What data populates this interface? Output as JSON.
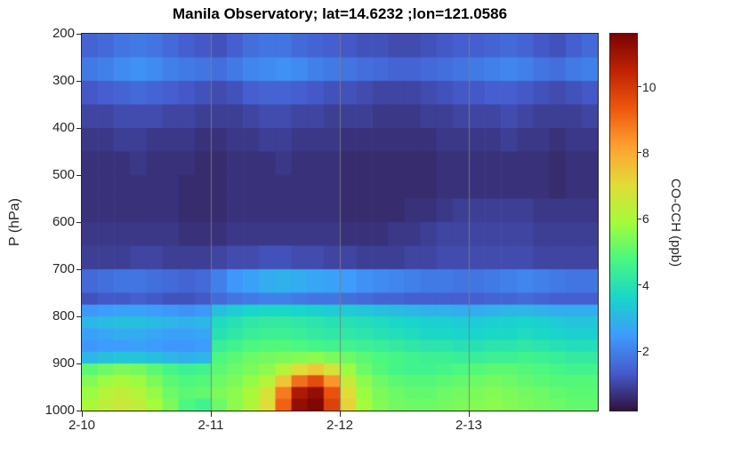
{
  "chart_data": {
    "type": "heatmap",
    "title": "Manila Observatory; lat=14.6232 ;lon=121.0586",
    "xlabel": "",
    "ylabel": "P (hPa)",
    "colorbar_label": "CO-CCH (ppb)",
    "x_tick_labels": [
      "2-10",
      "2-11",
      "2-12",
      "2-13"
    ],
    "x_tick_days": [
      0,
      1,
      2,
      3
    ],
    "x_range_days": [
      0,
      4
    ],
    "time_step_hours": 3,
    "y_ticks_hPa": [
      200,
      300,
      400,
      500,
      600,
      700,
      800,
      900,
      1000
    ],
    "y_range_hPa": [
      200,
      1000
    ],
    "y_axis_direction": "increasing-downward",
    "gridlines_days": [
      1,
      2,
      3
    ],
    "grid": "vertical-only",
    "legend_position": "right-colorbar",
    "color_scale": {
      "colormap": "turbo",
      "vmin": 0.2,
      "vmax": 11.6,
      "ticks_ppb": [
        2,
        4,
        6,
        8,
        10
      ]
    },
    "pressure_edges_hPa": [
      200,
      250,
      300,
      350,
      400,
      450,
      500,
      550,
      600,
      650,
      700,
      750,
      775,
      800,
      825,
      850,
      875,
      900,
      925,
      950,
      975,
      1000
    ],
    "values_ppb": [
      [
        1.5,
        1.6,
        1.8,
        1.9,
        1.8,
        1.6,
        1.4,
        1.3,
        1.2,
        1.4,
        1.7,
        1.8,
        1.8,
        1.6,
        1.5,
        1.4,
        1.3,
        1.2,
        1.2,
        1.1,
        1.1,
        1.2,
        1.3,
        1.4,
        1.4,
        1.5,
        1.6,
        1.5,
        1.3,
        1.2,
        1.4,
        1.6
      ],
      [
        1.9,
        2.0,
        2.2,
        2.3,
        2.2,
        2.0,
        1.9,
        1.8,
        1.7,
        1.9,
        2.1,
        2.2,
        2.3,
        2.2,
        2.0,
        1.9,
        1.8,
        1.7,
        1.6,
        1.5,
        1.5,
        1.6,
        1.7,
        1.8,
        1.9,
        2.0,
        2.1,
        2.0,
        1.8,
        1.7,
        1.9,
        2.0
      ],
      [
        1.3,
        1.4,
        1.5,
        1.6,
        1.5,
        1.4,
        1.3,
        1.2,
        1.1,
        1.2,
        1.4,
        1.5,
        1.5,
        1.4,
        1.3,
        1.2,
        1.2,
        1.1,
        1.0,
        1.0,
        1.0,
        1.1,
        1.2,
        1.3,
        1.3,
        1.4,
        1.4,
        1.3,
        1.2,
        1.1,
        1.2,
        1.3
      ],
      [
        1.0,
        1.0,
        1.1,
        1.1,
        1.1,
        1.0,
        1.0,
        0.9,
        0.9,
        0.9,
        1.0,
        1.1,
        1.1,
        1.0,
        1.0,
        0.9,
        0.9,
        0.9,
        0.8,
        0.8,
        0.8,
        0.9,
        0.9,
        1.0,
        1.0,
        1.0,
        1.1,
        1.0,
        0.9,
        0.9,
        0.9,
        1.0
      ],
      [
        0.8,
        0.8,
        0.9,
        0.9,
        0.8,
        0.8,
        0.8,
        0.7,
        0.7,
        0.8,
        0.8,
        0.9,
        0.9,
        0.8,
        0.8,
        0.8,
        0.7,
        0.7,
        0.7,
        0.7,
        0.7,
        0.7,
        0.8,
        0.8,
        0.8,
        0.8,
        0.9,
        0.8,
        0.8,
        0.7,
        0.8,
        0.8
      ],
      [
        0.7,
        0.7,
        0.7,
        0.8,
        0.7,
        0.7,
        0.7,
        0.6,
        0.6,
        0.7,
        0.7,
        0.7,
        0.8,
        0.7,
        0.7,
        0.7,
        0.6,
        0.6,
        0.6,
        0.6,
        0.6,
        0.6,
        0.7,
        0.7,
        0.7,
        0.7,
        0.7,
        0.7,
        0.7,
        0.6,
        0.7,
        0.7
      ],
      [
        0.7,
        0.7,
        0.7,
        0.7,
        0.7,
        0.7,
        0.6,
        0.6,
        0.6,
        0.7,
        0.7,
        0.7,
        0.7,
        0.7,
        0.7,
        0.7,
        0.6,
        0.6,
        0.6,
        0.6,
        0.6,
        0.6,
        0.7,
        0.7,
        0.7,
        0.7,
        0.7,
        0.7,
        0.7,
        0.6,
        0.7,
        0.7
      ],
      [
        0.7,
        0.7,
        0.7,
        0.7,
        0.7,
        0.7,
        0.6,
        0.6,
        0.6,
        0.7,
        0.7,
        0.7,
        0.7,
        0.7,
        0.7,
        0.7,
        0.6,
        0.6,
        0.6,
        0.6,
        0.7,
        0.7,
        0.8,
        0.9,
        0.9,
        0.9,
        0.9,
        0.9,
        0.8,
        0.8,
        0.8,
        0.8
      ],
      [
        0.8,
        0.8,
        0.8,
        0.8,
        0.8,
        0.8,
        0.7,
        0.7,
        0.7,
        0.8,
        0.8,
        0.8,
        0.8,
        0.8,
        0.8,
        0.8,
        0.7,
        0.7,
        0.7,
        0.8,
        0.8,
        0.9,
        1.0,
        1.0,
        1.0,
        1.0,
        1.0,
        1.0,
        0.9,
        0.9,
        0.9,
        0.9
      ],
      [
        0.9,
        0.9,
        0.9,
        1.0,
        1.0,
        0.9,
        0.9,
        0.9,
        1.0,
        1.1,
        1.1,
        1.2,
        1.2,
        1.1,
        1.1,
        1.0,
        1.0,
        0.9,
        0.9,
        0.9,
        1.0,
        1.0,
        1.1,
        1.1,
        1.1,
        1.1,
        1.1,
        1.1,
        1.0,
        1.0,
        1.0,
        1.0
      ],
      [
        1.6,
        1.7,
        1.8,
        1.8,
        1.7,
        1.6,
        1.5,
        1.6,
        2.0,
        2.4,
        2.6,
        2.8,
        2.9,
        2.8,
        2.7,
        2.6,
        2.5,
        2.3,
        2.2,
        2.1,
        2.0,
        1.9,
        1.9,
        1.8,
        1.8,
        1.9,
        2.0,
        2.1,
        2.0,
        1.9,
        1.8,
        1.8
      ],
      [
        1.2,
        1.3,
        1.3,
        1.4,
        1.3,
        1.2,
        1.2,
        1.3,
        1.6,
        1.8,
        1.9,
        2.0,
        2.0,
        1.9,
        1.8,
        1.8,
        1.7,
        1.6,
        1.5,
        1.5,
        1.4,
        1.4,
        1.4,
        1.4,
        1.4,
        1.5,
        1.5,
        1.6,
        1.5,
        1.4,
        1.4,
        1.4
      ],
      [
        2.4,
        2.5,
        2.6,
        2.6,
        2.5,
        2.4,
        2.3,
        2.4,
        3.2,
        3.4,
        3.6,
        3.7,
        3.7,
        3.6,
        3.5,
        3.4,
        3.4,
        3.3,
        3.2,
        3.1,
        3.0,
        2.9,
        2.9,
        2.8,
        2.8,
        2.9,
        3.0,
        3.0,
        2.9,
        2.8,
        2.8,
        2.8
      ],
      [
        3.0,
        3.1,
        3.2,
        3.2,
        3.1,
        3.0,
        2.9,
        3.0,
        3.8,
        4.0,
        4.2,
        4.3,
        4.3,
        4.2,
        4.1,
        4.0,
        4.0,
        3.9,
        3.8,
        3.7,
        3.6,
        3.5,
        3.5,
        3.4,
        3.4,
        3.5,
        3.5,
        3.6,
        3.5,
        3.4,
        3.3,
        3.3
      ],
      [
        2.6,
        2.7,
        2.8,
        2.8,
        2.7,
        2.6,
        2.6,
        2.7,
        4.0,
        4.2,
        4.4,
        4.5,
        4.5,
        4.4,
        4.3,
        4.2,
        4.2,
        4.1,
        4.0,
        3.9,
        3.8,
        3.7,
        3.7,
        3.6,
        3.6,
        3.7,
        3.7,
        3.8,
        3.7,
        3.6,
        3.5,
        3.5
      ],
      [
        2.4,
        2.5,
        2.5,
        2.6,
        2.5,
        2.4,
        2.4,
        2.5,
        4.4,
        4.6,
        4.8,
        4.9,
        4.9,
        4.8,
        4.7,
        4.6,
        4.6,
        4.5,
        4.4,
        4.3,
        4.2,
        4.1,
        4.1,
        4.0,
        4.0,
        4.1,
        4.1,
        4.2,
        4.1,
        4.0,
        3.9,
        3.9
      ],
      [
        3.0,
        3.2,
        3.3,
        3.3,
        3.2,
        3.0,
        2.9,
        3.0,
        4.8,
        5.0,
        5.2,
        5.3,
        5.4,
        5.5,
        5.6,
        5.4,
        5.2,
        5.0,
        4.8,
        4.7,
        4.6,
        4.5,
        4.5,
        4.4,
        4.4,
        4.5,
        4.5,
        4.6,
        4.5,
        4.4,
        4.3,
        4.3
      ],
      [
        5.0,
        5.2,
        5.4,
        5.3,
        5.0,
        4.7,
        4.5,
        4.6,
        5.0,
        5.2,
        5.4,
        5.6,
        6.2,
        7.0,
        7.4,
        6.8,
        5.8,
        5.2,
        4.9,
        4.7,
        4.6,
        4.6,
        4.7,
        4.8,
        4.9,
        5.0,
        5.0,
        4.9,
        4.8,
        4.7,
        4.6,
        4.6
      ],
      [
        5.5,
        5.8,
        6.0,
        5.8,
        5.4,
        5.0,
        4.8,
        4.9,
        5.2,
        5.4,
        5.7,
        6.2,
        7.5,
        9.0,
        9.6,
        8.4,
        6.5,
        5.6,
        5.2,
        5.0,
        4.9,
        4.9,
        5.0,
        5.1,
        5.2,
        5.3,
        5.2,
        5.1,
        5.0,
        4.9,
        4.9,
        4.9
      ],
      [
        5.8,
        6.2,
        6.4,
        6.2,
        5.7,
        5.2,
        5.0,
        5.1,
        5.4,
        5.6,
        6.0,
        6.8,
        8.8,
        10.8,
        11.2,
        9.5,
        7.0,
        5.8,
        5.4,
        5.2,
        5.1,
        5.1,
        5.2,
        5.3,
        5.4,
        5.5,
        5.4,
        5.3,
        5.2,
        5.1,
        5.0,
        5.0
      ],
      [
        6.0,
        6.4,
        6.6,
        6.4,
        5.9,
        5.4,
        4.8,
        4.6,
        5.2,
        5.6,
        6.1,
        7.0,
        9.2,
        11.2,
        11.5,
        9.8,
        7.2,
        5.9,
        5.5,
        5.3,
        5.2,
        5.2,
        5.3,
        5.4,
        5.5,
        5.6,
        5.5,
        5.4,
        5.3,
        5.2,
        5.1,
        5.1
      ]
    ]
  }
}
